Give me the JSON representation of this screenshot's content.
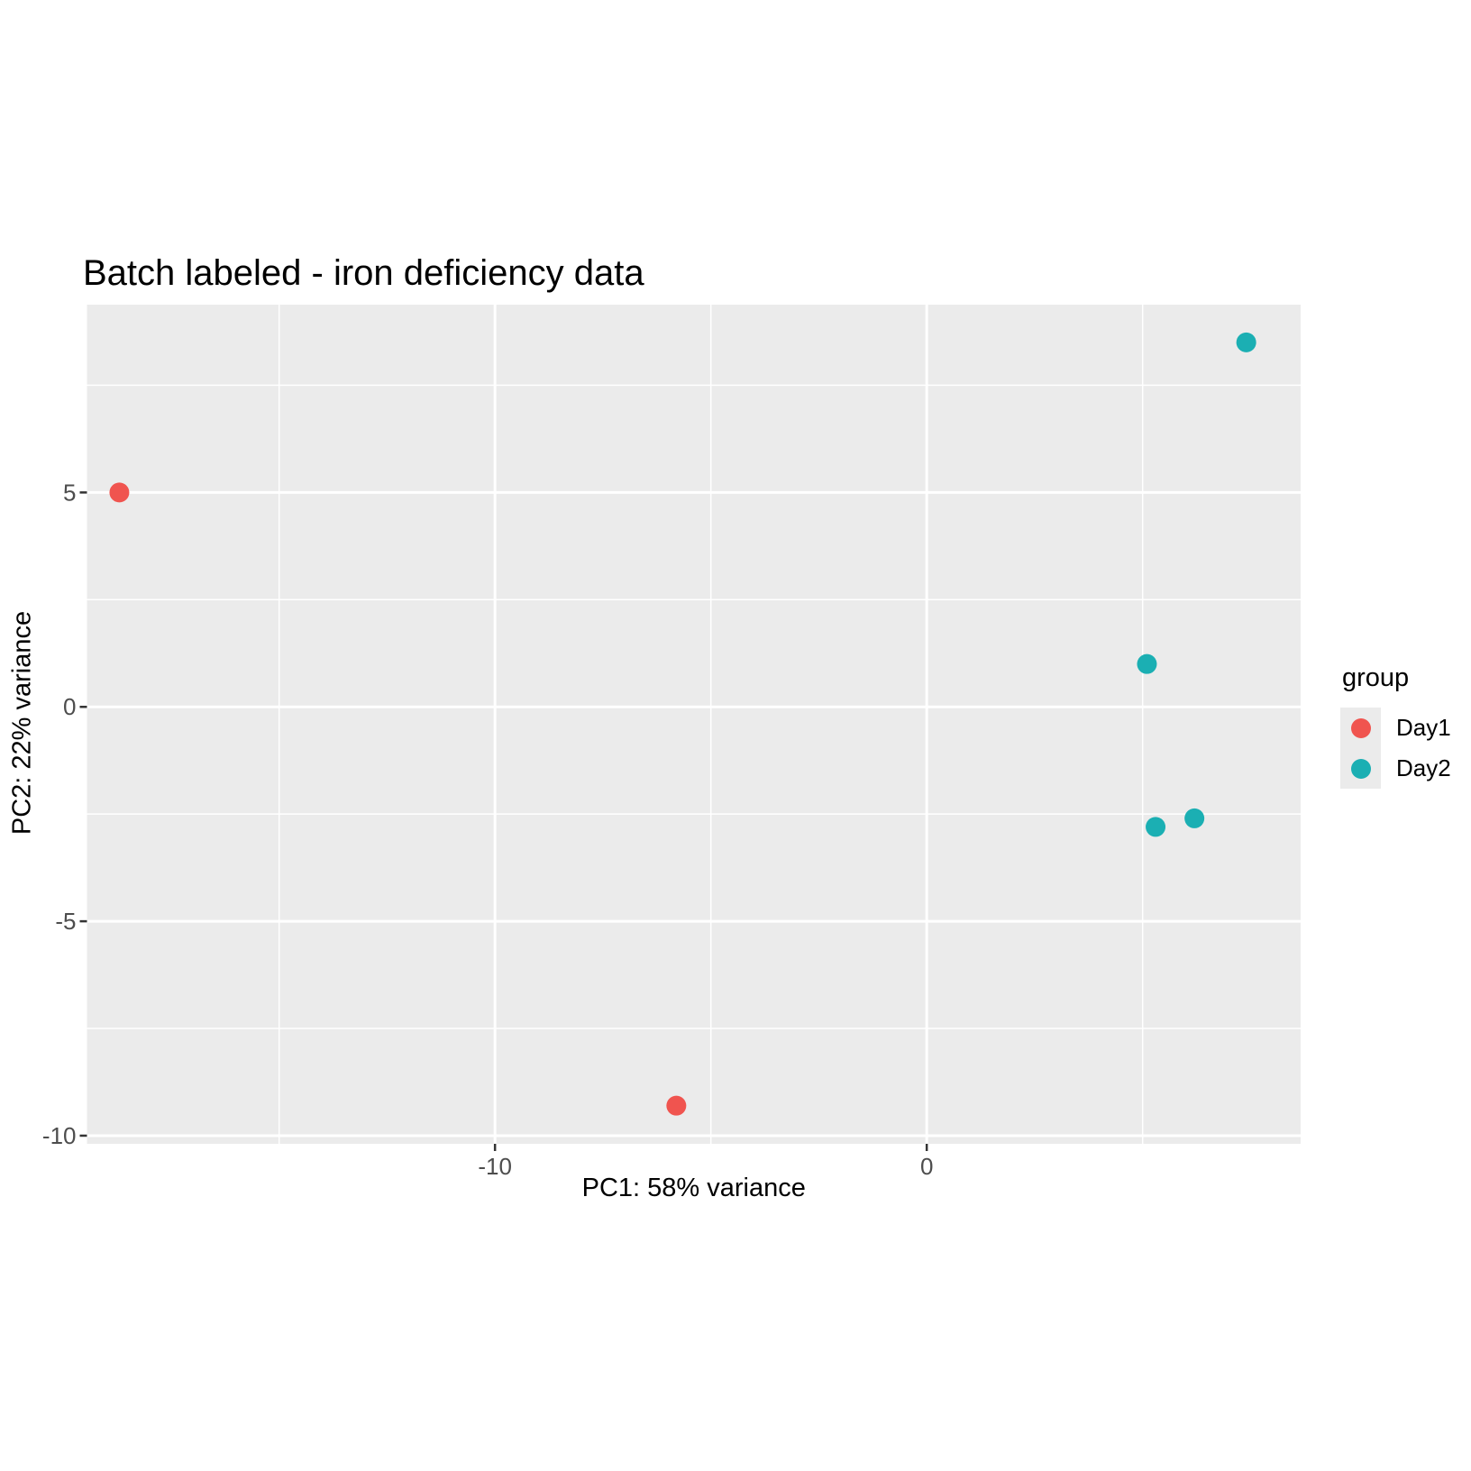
{
  "chart_data": {
    "type": "scatter",
    "title": "Batch labeled - iron deficiency data",
    "xlabel": "PC1: 58% variance",
    "ylabel": "PC2: 22% variance",
    "xlim": [
      -19.45,
      8.66
    ],
    "ylim": [
      -10.19,
      9.38
    ],
    "x_ticks": [
      {
        "value": -10,
        "label": "-10"
      },
      {
        "value": 0,
        "label": "0"
      }
    ],
    "y_ticks": [
      {
        "value": 5,
        "label": "5"
      },
      {
        "value": 0,
        "label": "0"
      },
      {
        "value": -5,
        "label": "-5"
      },
      {
        "value": -10,
        "label": "-10"
      }
    ],
    "x_minor_gridlines": [
      -15,
      -5,
      5
    ],
    "y_minor_gridlines": [
      7.5,
      2.5,
      -2.5,
      -7.5
    ],
    "grid": "white major and minor gridlines on gray panel",
    "legend": {
      "title": "group",
      "position": "right"
    },
    "series": [
      {
        "name": "Day1",
        "color": "#F0544F",
        "points": [
          {
            "x": -18.7,
            "y": 5.0
          },
          {
            "x": -5.8,
            "y": -9.3
          }
        ]
      },
      {
        "name": "Day2",
        "color": "#1BAFB3",
        "points": [
          {
            "x": 7.4,
            "y": 8.5
          },
          {
            "x": 5.1,
            "y": 1.0
          },
          {
            "x": 5.3,
            "y": -2.8
          },
          {
            "x": 6.2,
            "y": -2.6
          }
        ]
      }
    ],
    "style": {
      "panel_bg": "#EBEBEB",
      "grid_color": "#FFFFFF",
      "tick_mark_color": "#333333",
      "tick_label_color": "#4D4D4D",
      "text_color": "#000000",
      "point_radius": 11
    }
  }
}
